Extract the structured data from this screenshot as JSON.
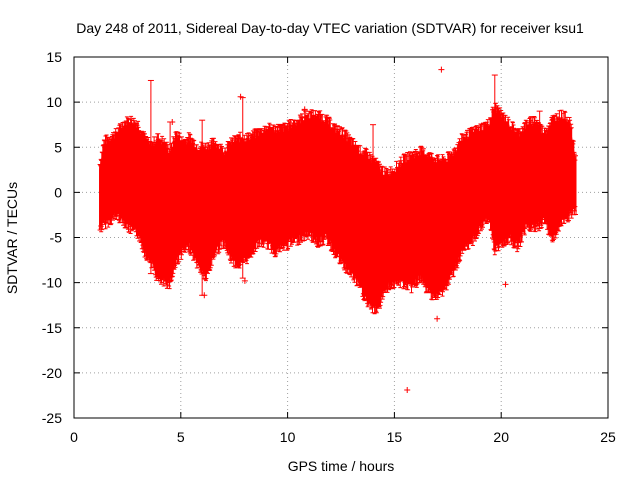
{
  "chart_data": {
    "type": "line",
    "title": "Day 248 of 2011, Sidereal Day-to-day VTEC variation (SDTVAR) for receiver ksu1",
    "xlabel": "GPS time / hours",
    "ylabel": "SDTVAR / TECUs",
    "xlim": [
      0,
      25
    ],
    "ylim": [
      -25,
      15
    ],
    "xticks": [
      0,
      5,
      10,
      15,
      20,
      25
    ],
    "yticks": [
      -25,
      -20,
      -15,
      -10,
      -5,
      0,
      5,
      10,
      15
    ],
    "grid": true,
    "series_color": "#ff0000",
    "series": [
      {
        "name": "SDTVAR",
        "envelope": {
          "x": [
            1.2,
            1.4,
            1.7,
            2.0,
            2.3,
            2.6,
            3.0,
            3.3,
            3.6,
            3.9,
            4.2,
            4.5,
            4.8,
            5.1,
            5.4,
            5.8,
            6.2,
            6.6,
            7.0,
            7.4,
            7.8,
            8.2,
            8.6,
            9.0,
            9.4,
            9.8,
            10.2,
            10.6,
            11.0,
            11.4,
            11.8,
            12.2,
            12.6,
            13.0,
            13.4,
            13.8,
            14.2,
            14.6,
            15.0,
            15.4,
            15.8,
            16.2,
            16.6,
            17.0,
            17.4,
            17.8,
            18.2,
            18.6,
            19.0,
            19.4,
            19.7,
            20.0,
            20.4,
            20.8,
            21.2,
            21.6,
            22.0,
            22.4,
            22.8,
            23.2,
            23.5
          ],
          "upper": [
            2.5,
            5.0,
            5.5,
            6.0,
            7.0,
            7.5,
            7.0,
            5.5,
            4.5,
            5.5,
            5.0,
            4.0,
            6.0,
            5.0,
            5.5,
            4.5,
            4.5,
            5.0,
            4.0,
            5.0,
            5.5,
            5.5,
            6.0,
            6.5,
            6.5,
            6.5,
            7.0,
            7.5,
            8.0,
            8.0,
            7.5,
            6.5,
            6.0,
            5.0,
            4.0,
            3.5,
            2.5,
            1.5,
            2.0,
            3.0,
            3.5,
            4.0,
            3.5,
            3.0,
            3.0,
            4.0,
            5.5,
            6.0,
            6.5,
            7.0,
            9.0,
            8.0,
            7.0,
            6.0,
            7.0,
            7.5,
            6.0,
            7.5,
            8.0,
            7.5,
            3.0
          ],
          "lower": [
            -3.5,
            -3.0,
            -2.5,
            -2.0,
            -2.5,
            -3.5,
            -4.0,
            -6.0,
            -7.0,
            -9.0,
            -9.5,
            -9.5,
            -7.0,
            -6.0,
            -5.5,
            -7.5,
            -9.0,
            -6.0,
            -5.0,
            -7.0,
            -7.5,
            -6.5,
            -5.0,
            -5.0,
            -6.0,
            -5.5,
            -5.0,
            -4.5,
            -4.0,
            -5.0,
            -4.5,
            -6.0,
            -7.5,
            -8.5,
            -10.0,
            -12.0,
            -12.5,
            -10.0,
            -9.5,
            -9.5,
            -10.0,
            -9.0,
            -10.5,
            -11.0,
            -10.0,
            -8.0,
            -6.0,
            -5.0,
            -3.5,
            -2.0,
            -6.0,
            -5.0,
            -4.5,
            -5.5,
            -3.0,
            -3.5,
            -2.5,
            -4.5,
            -3.0,
            -2.0,
            -1.5
          ]
        },
        "spikes": [
          {
            "x": 3.6,
            "low": -9.0,
            "high": 12.4
          },
          {
            "x": 4.5,
            "low": -8.5,
            "high": 7.8
          },
          {
            "x": 6.0,
            "low": -11.4,
            "high": 8.0
          },
          {
            "x": 7.9,
            "low": -9.5,
            "high": 10.5
          },
          {
            "x": 10.8,
            "low": -4.0,
            "high": 9.1
          },
          {
            "x": 14.0,
            "low": -12.5,
            "high": 7.5
          },
          {
            "x": 19.7,
            "low": -5.5,
            "high": 13.0
          },
          {
            "x": 21.8,
            "low": -4.0,
            "high": 9.0
          },
          {
            "x": 22.4,
            "low": -4.5,
            "high": 8.0
          }
        ],
        "outliers": [
          {
            "x": 7.8,
            "y": 10.6
          },
          {
            "x": 10.8,
            "y": 9.2
          },
          {
            "x": 17.2,
            "y": 13.6
          },
          {
            "x": 16.6,
            "y": 3.6
          },
          {
            "x": 6.1,
            "y": -11.4
          },
          {
            "x": 8.0,
            "y": -9.8
          },
          {
            "x": 15.6,
            "y": -21.9
          },
          {
            "x": 17.0,
            "y": -14.0
          },
          {
            "x": 20.2,
            "y": -10.2
          },
          {
            "x": 4.6,
            "y": 7.8
          }
        ]
      }
    ]
  }
}
